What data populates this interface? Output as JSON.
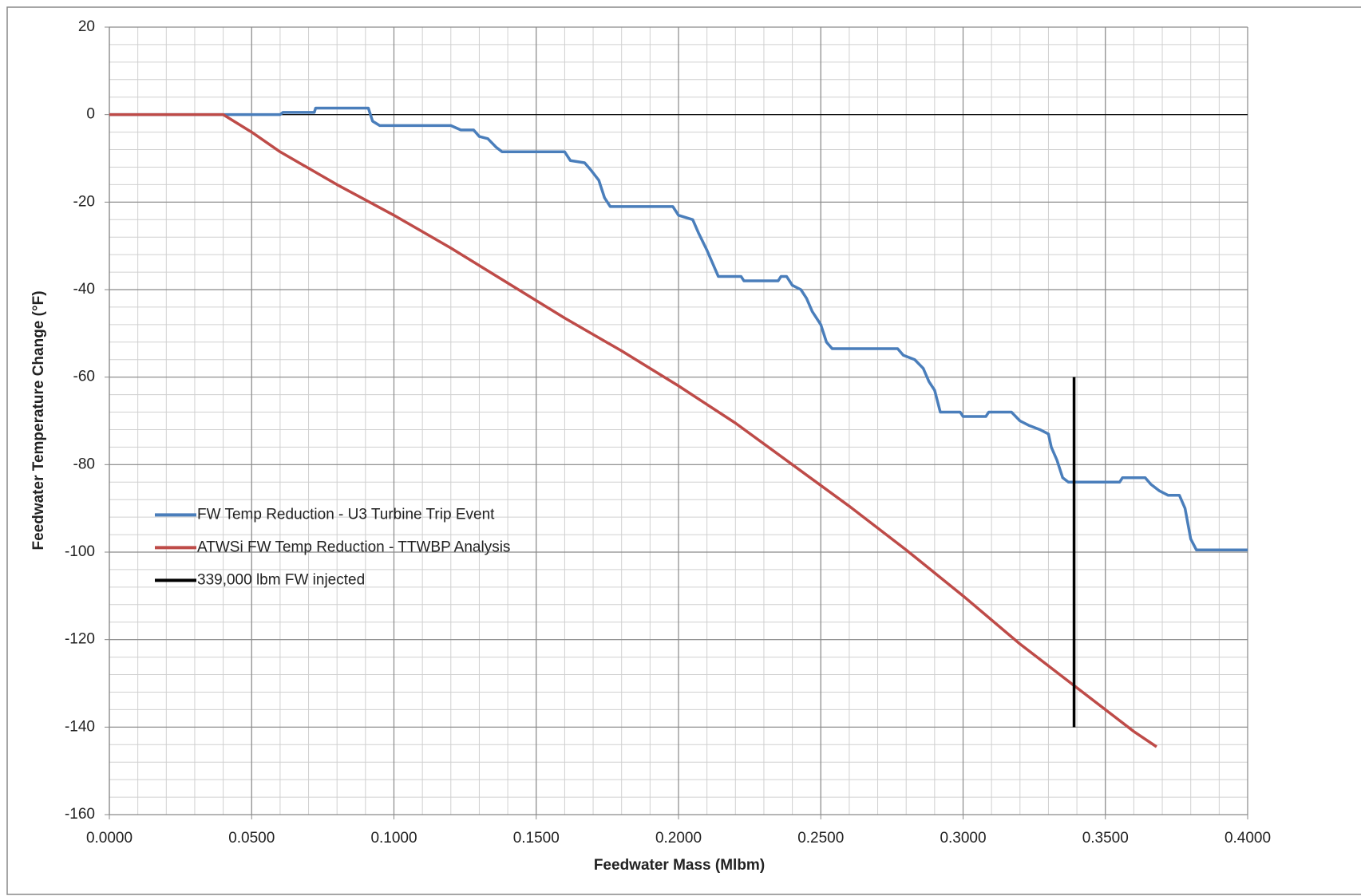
{
  "chart_data": {
    "type": "line",
    "x_label": "Feedwater Mass (Mlbm)",
    "y_label": "Feedwater Temperature Change (°F)",
    "xlim": [
      0,
      0.4
    ],
    "ylim": [
      -160,
      20
    ],
    "xticks": [
      {
        "value": 0,
        "label": "0.0000"
      },
      {
        "value": 0.05,
        "label": "0.0500"
      },
      {
        "value": 0.1,
        "label": "0.1000"
      },
      {
        "value": 0.15,
        "label": "0.1500"
      },
      {
        "value": 0.2,
        "label": "0.2000"
      },
      {
        "value": 0.25,
        "label": "0.2500"
      },
      {
        "value": 0.3,
        "label": "0.3000"
      },
      {
        "value": 0.35,
        "label": "0.3500"
      },
      {
        "value": 0.4,
        "label": "0.4000"
      }
    ],
    "yticks": [
      20,
      0,
      -20,
      -40,
      -60,
      -80,
      -100,
      -120,
      -140,
      -160
    ],
    "grid": true,
    "minor_grid_step": {
      "x": 0.01,
      "y": 4
    },
    "legend": "middle-left",
    "series": [
      {
        "name": "FW Temp Reduction - U3 Turbine Trip Event",
        "color": "#4a7ebb",
        "x": [
          0,
          0.04,
          0.06,
          0.061,
          0.072,
          0.0725,
          0.091,
          0.0925,
          0.095,
          0.12,
          0.1235,
          0.128,
          0.13,
          0.133,
          0.136,
          0.138,
          0.16,
          0.162,
          0.167,
          0.169,
          0.172,
          0.174,
          0.176,
          0.198,
          0.2,
          0.205,
          0.207,
          0.21,
          0.212,
          0.214,
          0.222,
          0.223,
          0.235,
          0.236,
          0.238,
          0.24,
          0.243,
          0.245,
          0.247,
          0.25,
          0.252,
          0.254,
          0.277,
          0.279,
          0.283,
          0.286,
          0.288,
          0.29,
          0.292,
          0.299,
          0.3,
          0.308,
          0.309,
          0.317,
          0.32,
          0.323,
          0.327,
          0.33,
          0.331,
          0.333,
          0.335,
          0.337,
          0.355,
          0.356,
          0.364,
          0.366,
          0.369,
          0.372,
          0.376,
          0.378,
          0.38,
          0.382,
          0.4
        ],
        "values": [
          0,
          0,
          0,
          0.5,
          0.5,
          1.5,
          1.5,
          -1.5,
          -2.5,
          -2.5,
          -3.5,
          -3.5,
          -5,
          -5.5,
          -7.5,
          -8.5,
          -8.5,
          -10.5,
          -11,
          -12.5,
          -15,
          -19,
          -21,
          -21,
          -23,
          -24,
          -27,
          -31,
          -34,
          -37,
          -37,
          -38,
          -38,
          -37,
          -37,
          -39,
          -40,
          -42,
          -45,
          -48,
          -52,
          -53.5,
          -53.5,
          -55,
          -56,
          -58,
          -61,
          -63,
          -68,
          -68,
          -69,
          -69,
          -68,
          -68,
          -70,
          -71,
          -72,
          -73,
          -76,
          -79,
          -83,
          -84,
          -84,
          -83,
          -83,
          -84.5,
          -86,
          -87,
          -87,
          -90,
          -97,
          -99.5,
          -99.5
        ]
      },
      {
        "name": "ATWSi FW Temp Reduction - TTWBP Analysis",
        "color": "#be4b48",
        "x": [
          0,
          0.04,
          0.05,
          0.06,
          0.08,
          0.1,
          0.12,
          0.14,
          0.16,
          0.18,
          0.2,
          0.22,
          0.24,
          0.26,
          0.28,
          0.3,
          0.32,
          0.34,
          0.36,
          0.368
        ],
        "values": [
          0,
          0,
          -4,
          -8.5,
          -16,
          -23,
          -30.5,
          -38.5,
          -46.5,
          -54,
          -62,
          -70.5,
          -80,
          -89.5,
          -99.5,
          -110,
          -121,
          -131,
          -141,
          -144.5
        ]
      },
      {
        "name": "339,000 lbm FW injected",
        "color": "#000000",
        "x": [
          0.339,
          0.339
        ],
        "values": [
          -60,
          -140
        ]
      }
    ]
  }
}
